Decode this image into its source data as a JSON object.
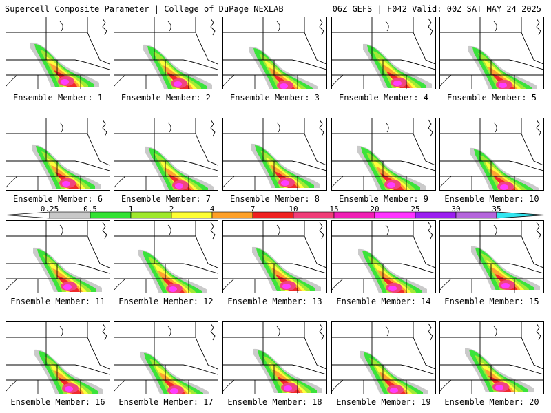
{
  "header": {
    "left": "Supercell Composite Parameter | College of DuPage NEXLAB",
    "right": "06Z GEFS | F042 Valid: 00Z SAT MAY 24 2025"
  },
  "colorbar": {
    "ticks": [
      "0.25",
      "0.5",
      "1",
      "2",
      "4",
      "7",
      "10",
      "15",
      "20",
      "25",
      "30",
      "35"
    ],
    "colors": [
      "#c8c8c8",
      "#31e231",
      "#9ee82b",
      "#fefe32",
      "#fea028",
      "#f02020",
      "#f03c78",
      "#f01eb4",
      "#ff32ff",
      "#9b1ef0",
      "#b464dc",
      "#32e6f0"
    ]
  },
  "panels": [
    {
      "label": "Ensemble Member: 1"
    },
    {
      "label": "Ensemble Member: 2"
    },
    {
      "label": "Ensemble Member: 3"
    },
    {
      "label": "Ensemble Member: 4"
    },
    {
      "label": "Ensemble Member: 5"
    },
    {
      "label": "Ensemble Member: 6"
    },
    {
      "label": "Ensemble Member: 7"
    },
    {
      "label": "Ensemble Member: 8"
    },
    {
      "label": "Ensemble Member: 9"
    },
    {
      "label": "Ensemble Member: 10"
    },
    {
      "label": "Ensemble Member: 11"
    },
    {
      "label": "Ensemble Member: 12"
    },
    {
      "label": "Ensemble Member: 13"
    },
    {
      "label": "Ensemble Member: 14"
    },
    {
      "label": "Ensemble Member: 15"
    },
    {
      "label": "Ensemble Member: 16"
    },
    {
      "label": "Ensemble Member: 17"
    },
    {
      "label": "Ensemble Member: 18"
    },
    {
      "label": "Ensemble Member: 19"
    },
    {
      "label": "Ensemble Member: 20"
    }
  ]
}
